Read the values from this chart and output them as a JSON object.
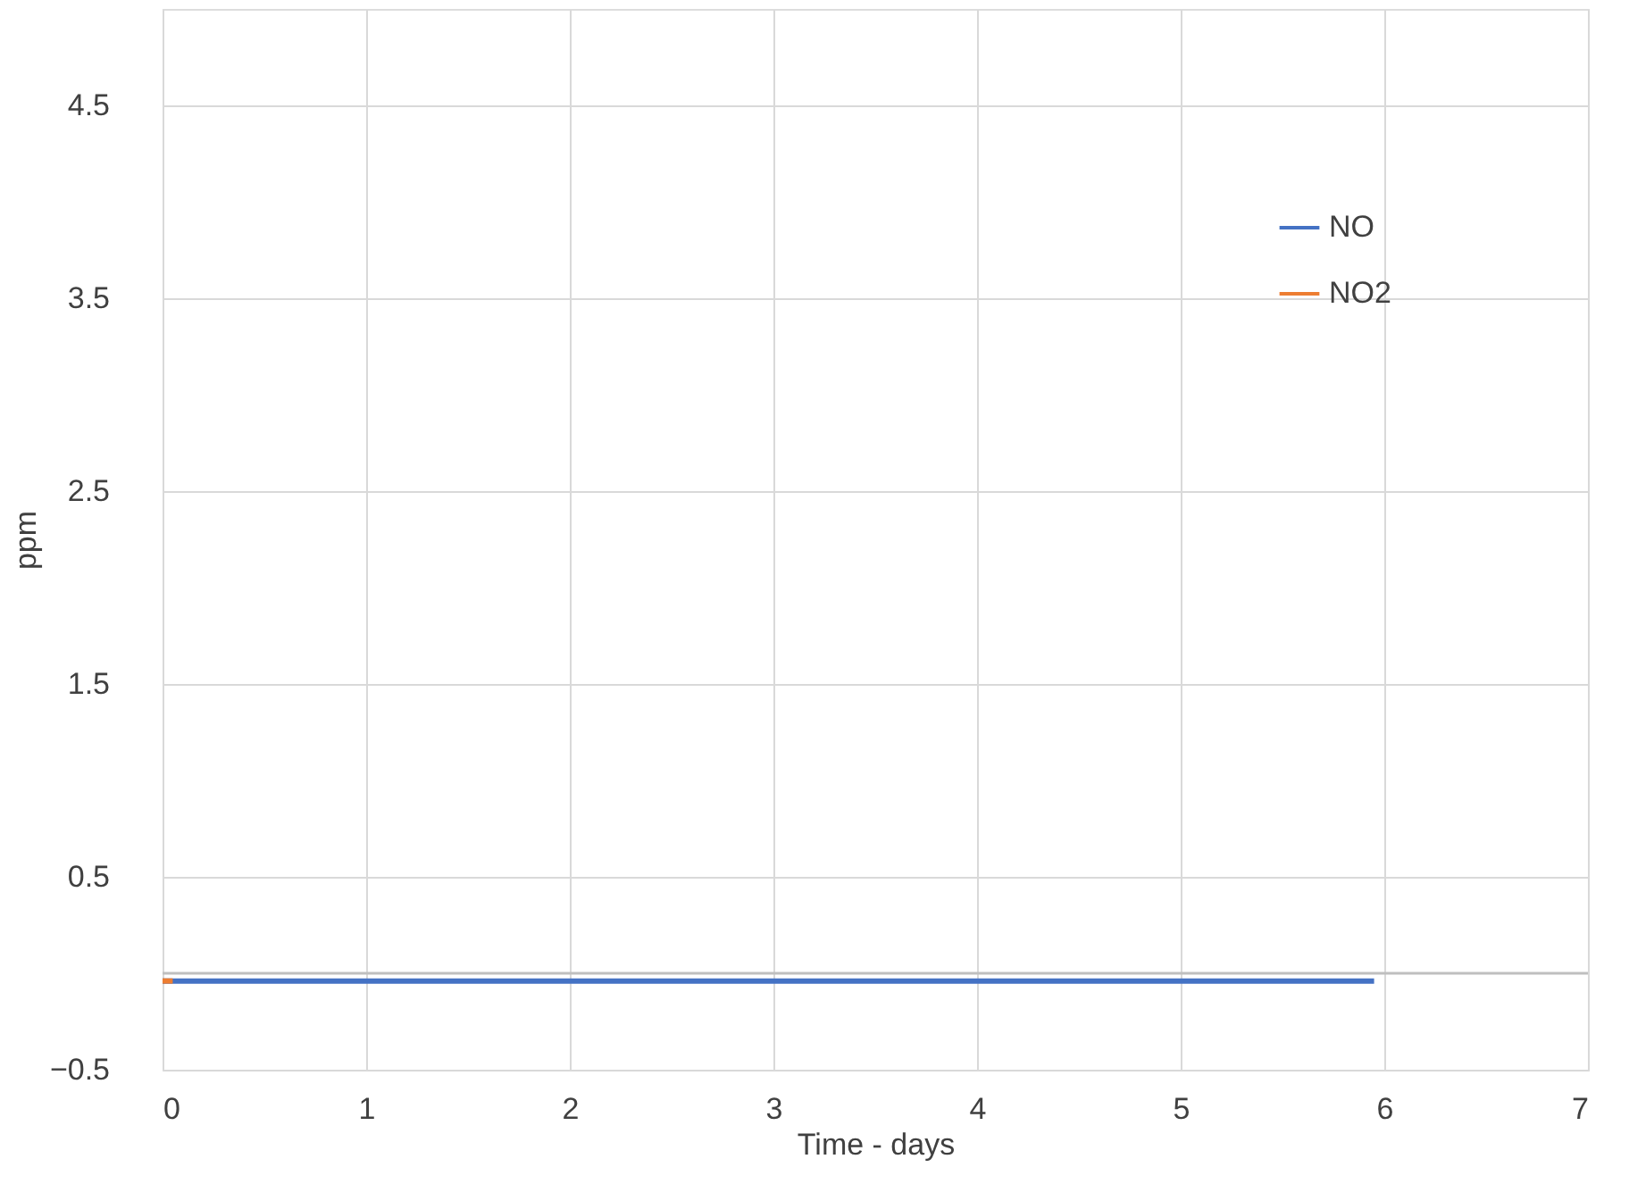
{
  "chart_data": {
    "type": "line",
    "xlabel": "Time - days",
    "ylabel": "ppm",
    "xlim": [
      0,
      7
    ],
    "xticks": [
      0,
      1,
      2,
      3,
      4,
      5,
      6,
      7
    ],
    "ylim": [
      -0.5,
      5.0
    ],
    "yticks": [
      -0.5,
      0.5,
      1.5,
      2.5,
      3.5,
      4.5
    ],
    "grid": true,
    "legend": "top right",
    "marker": "none",
    "line_style": "solid",
    "ref_lines": [
      {
        "axis": "y",
        "value": 0,
        "color": "#bfbfbf"
      }
    ],
    "series": [
      {
        "name": "NO",
        "color": "#4472c4",
        "x": [
          0,
          1,
          2,
          3,
          4,
          5,
          5.95
        ],
        "values": [
          -0.04,
          -0.04,
          -0.04,
          -0.04,
          -0.04,
          -0.04,
          -0.04
        ]
      },
      {
        "name": "NO2",
        "color": "#ed7d31",
        "x": [
          0,
          0.05
        ],
        "values": [
          -0.04,
          -0.04
        ]
      }
    ]
  }
}
